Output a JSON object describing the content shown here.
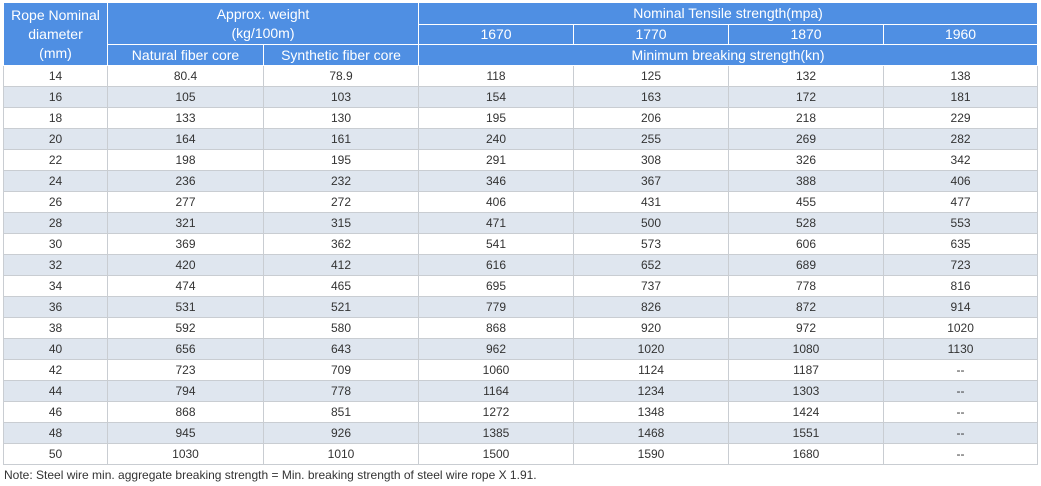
{
  "table": {
    "headers": {
      "diameter": [
        "Rope Nominal",
        "diameter",
        "(mm)"
      ],
      "weight": [
        "Approx. weight",
        "(kg/100m)"
      ],
      "natural": "Natural fiber core",
      "synthetic": "Synthetic fiber core",
      "tensile": "Nominal Tensile strength(mpa)",
      "grades": [
        "1670",
        "1770",
        "1870",
        "1960"
      ],
      "breaking": "Minimum breaking strength(kn)"
    },
    "rows": [
      [
        "14",
        "80.4",
        "78.9",
        "118",
        "125",
        "132",
        "138"
      ],
      [
        "16",
        "105",
        "103",
        "154",
        "163",
        "172",
        "181"
      ],
      [
        "18",
        "133",
        "130",
        "195",
        "206",
        "218",
        "229"
      ],
      [
        "20",
        "164",
        "161",
        "240",
        "255",
        "269",
        "282"
      ],
      [
        "22",
        "198",
        "195",
        "291",
        "308",
        "326",
        "342"
      ],
      [
        "24",
        "236",
        "232",
        "346",
        "367",
        "388",
        "406"
      ],
      [
        "26",
        "277",
        "272",
        "406",
        "431",
        "455",
        "477"
      ],
      [
        "28",
        "321",
        "315",
        "471",
        "500",
        "528",
        "553"
      ],
      [
        "30",
        "369",
        "362",
        "541",
        "573",
        "606",
        "635"
      ],
      [
        "32",
        "420",
        "412",
        "616",
        "652",
        "689",
        "723"
      ],
      [
        "34",
        "474",
        "465",
        "695",
        "737",
        "778",
        "816"
      ],
      [
        "36",
        "531",
        "521",
        "779",
        "826",
        "872",
        "914"
      ],
      [
        "38",
        "592",
        "580",
        "868",
        "920",
        "972",
        "1020"
      ],
      [
        "40",
        "656",
        "643",
        "962",
        "1020",
        "1080",
        "1130"
      ],
      [
        "42",
        "723",
        "709",
        "1060",
        "1124",
        "1187",
        "--"
      ],
      [
        "44",
        "794",
        "778",
        "1164",
        "1234",
        "1303",
        "--"
      ],
      [
        "46",
        "868",
        "851",
        "1272",
        "1348",
        "1424",
        "--"
      ],
      [
        "48",
        "945",
        "926",
        "1385",
        "1468",
        "1551",
        "--"
      ],
      [
        "50",
        "1030",
        "1010",
        "1500",
        "1590",
        "1680",
        "--"
      ]
    ]
  },
  "note": "Note: Steel wire min. aggregate breaking strength = Min. breaking strength of steel wire rope X 1.91."
}
